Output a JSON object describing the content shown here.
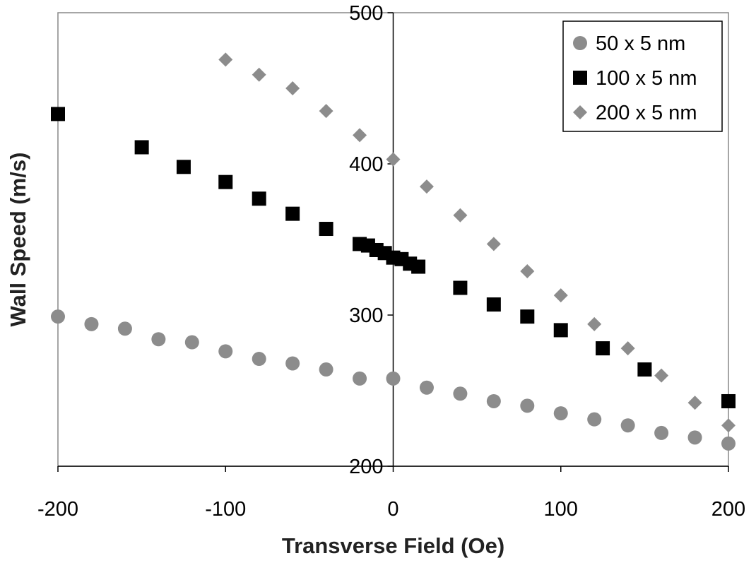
{
  "chart_data": {
    "type": "scatter",
    "xlabel": "Transverse Field (Oe)",
    "ylabel": "Wall Speed (m/s)",
    "xlim": [
      -200,
      200
    ],
    "ylim": [
      200,
      500
    ],
    "xticks": [
      -200,
      -100,
      0,
      100,
      200
    ],
    "yticks": [
      200,
      300,
      400,
      500
    ],
    "grid": false,
    "legend_position": "top-right",
    "series": [
      {
        "name": "50 x 5 nm",
        "marker": "circle",
        "color": "#8c8c8c",
        "x": [
          -200,
          -180,
          -160,
          -140,
          -120,
          -100,
          -80,
          -60,
          -40,
          -20,
          0,
          20,
          40,
          60,
          80,
          100,
          120,
          140,
          160,
          180,
          200
        ],
        "y": [
          299,
          294,
          291,
          284,
          282,
          276,
          271,
          268,
          264,
          258,
          258,
          252,
          248,
          243,
          240,
          235,
          231,
          227,
          222,
          219,
          215
        ]
      },
      {
        "name": "100 x 5 nm",
        "marker": "square",
        "color": "#000000",
        "x": [
          -200,
          -150,
          -125,
          -100,
          -80,
          -60,
          -40,
          -20,
          -15,
          -10,
          -5,
          0,
          5,
          10,
          15,
          40,
          60,
          80,
          100,
          125,
          150,
          200
        ],
        "y": [
          433,
          411,
          398,
          388,
          377,
          367,
          357,
          347,
          346,
          343,
          341,
          338,
          337,
          334,
          332,
          318,
          307,
          299,
          290,
          278,
          264,
          243
        ]
      },
      {
        "name": "200 x 5 nm",
        "marker": "diamond",
        "color": "#8c8c8c",
        "x": [
          -100,
          -80,
          -60,
          -40,
          -20,
          0,
          20,
          40,
          60,
          80,
          100,
          120,
          140,
          160,
          180,
          200
        ],
        "y": [
          469,
          459,
          450,
          435,
          419,
          403,
          385,
          366,
          347,
          329,
          313,
          294,
          278,
          260,
          242,
          227
        ]
      }
    ]
  }
}
